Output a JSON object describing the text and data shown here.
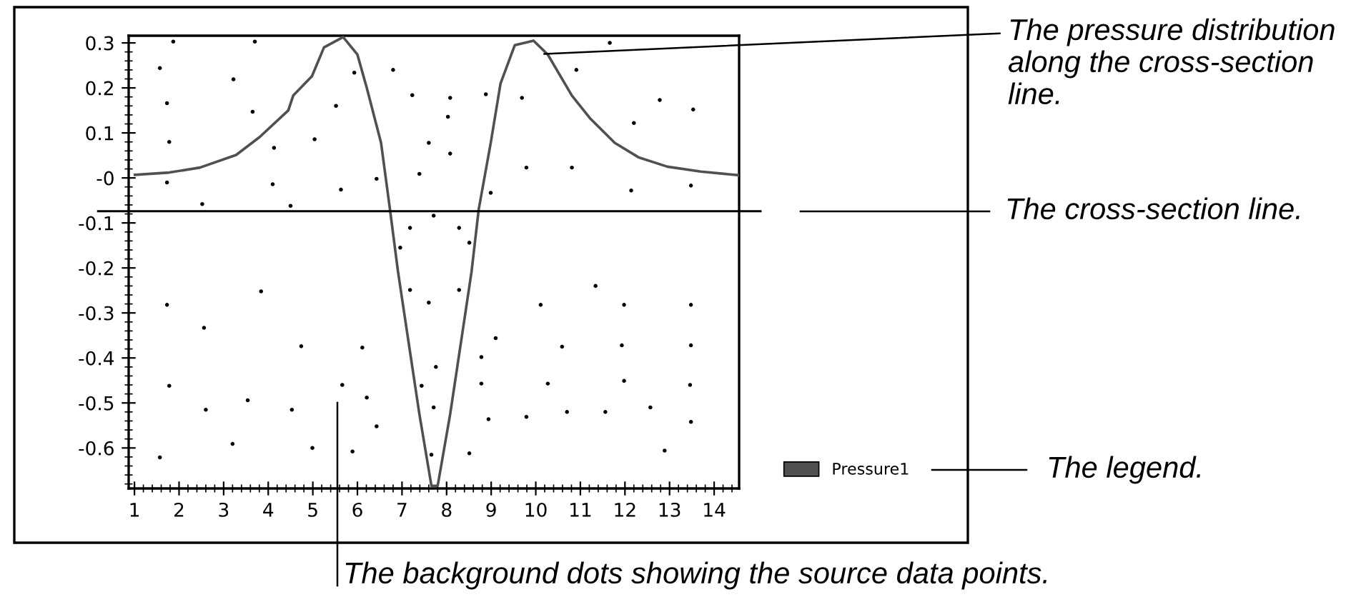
{
  "chart_data": {
    "type": "line",
    "series": [
      {
        "name": "Pressure1",
        "color": "#505050",
        "x": [
          1.01,
          1.78,
          2.47,
          3.28,
          3.81,
          4.45,
          4.56,
          4.98,
          5.25,
          5.68,
          6.0,
          6.21,
          6.53,
          6.73,
          6.91,
          7.07,
          7.39,
          7.66,
          7.8,
          8.08,
          8.4,
          8.56,
          8.72,
          8.99,
          9.21,
          9.53,
          9.95,
          10.27,
          10.81,
          11.23,
          11.77,
          12.3,
          12.95,
          13.7,
          14.55
        ],
        "values": [
          0.007,
          0.012,
          0.023,
          0.051,
          0.091,
          0.15,
          0.183,
          0.226,
          0.29,
          0.313,
          0.274,
          0.2,
          0.078,
          -0.07,
          -0.208,
          -0.314,
          -0.525,
          -0.684,
          -0.684,
          -0.525,
          -0.314,
          -0.208,
          -0.07,
          0.078,
          0.21,
          0.295,
          0.305,
          0.274,
          0.183,
          0.131,
          0.078,
          0.046,
          0.025,
          0.014,
          0.006
        ]
      },
      {
        "type": "scatter",
        "color": "#000000",
        "x": [
          1.87,
          3.7,
          1.57,
          3.22,
          1.73,
          3.65,
          1.78,
          4.13,
          5.93,
          5.52,
          5.04,
          1.73,
          4.1,
          2.52,
          4.5,
          5.63,
          6.43,
          6.8,
          7.23,
          8.08,
          8.88,
          9.69,
          10.91,
          11.66,
          12.78,
          13.53,
          12.2,
          10.81,
          9.79,
          12.14,
          13.48,
          7.6,
          8.03,
          8.08,
          7.39,
          8.99,
          1.73,
          3.84,
          2.56,
          1.78,
          2.6,
          1.57,
          3.2,
          3.54,
          4.53,
          4.74,
          4.99,
          5.89,
          5.66,
          6.43,
          6.21,
          6.11,
          7.66,
          7.71,
          8.51,
          8.94,
          9.79,
          10.7,
          11.56,
          12.57,
          13.48,
          13.46,
          11.98,
          10.27,
          8.78,
          8.78,
          10.59,
          11.93,
          13.48,
          11.98,
          13.48,
          10.11,
          9.1,
          7.44,
          7.76,
          11.34,
          12.89,
          7.71,
          7.6,
          6.96,
          8.51,
          7.18,
          8.28,
          7.18,
          8.28
        ],
        "values": [
          0.303,
          0.303,
          0.244,
          0.219,
          0.166,
          0.147,
          0.08,
          0.067,
          0.234,
          0.16,
          0.086,
          -0.01,
          -0.014,
          -0.058,
          -0.062,
          -0.026,
          -0.002,
          0.24,
          0.184,
          0.178,
          0.186,
          0.178,
          0.24,
          0.3,
          0.173,
          0.152,
          0.122,
          0.023,
          0.023,
          -0.028,
          -0.017,
          0.078,
          0.136,
          0.054,
          0.009,
          -0.033,
          -0.282,
          -0.252,
          -0.333,
          -0.462,
          -0.515,
          -0.621,
          -0.591,
          -0.494,
          -0.515,
          -0.374,
          -0.6,
          -0.608,
          -0.46,
          -0.552,
          -0.488,
          -0.377,
          -0.615,
          -0.51,
          -0.612,
          -0.536,
          -0.531,
          -0.52,
          -0.52,
          -0.51,
          -0.542,
          -0.46,
          -0.451,
          -0.457,
          -0.457,
          -0.398,
          -0.375,
          -0.372,
          -0.372,
          -0.282,
          -0.282,
          -0.282,
          -0.356,
          -0.462,
          -0.42,
          -0.24,
          -0.606,
          -0.084,
          -0.277,
          -0.155,
          -0.144,
          -0.111,
          -0.111,
          -0.249,
          -0.249
        ]
      }
    ],
    "xlim": [
      0.87,
      14.56
    ],
    "ylim": [
      -0.69,
      0.316
    ],
    "xticks": [
      1,
      2,
      3,
      4,
      5,
      6,
      7,
      8,
      9,
      10,
      11,
      12,
      13,
      14
    ],
    "yticks": [
      0.3,
      0.2,
      0.1,
      {
        "value": 0,
        "label": "-0"
      },
      -0.1,
      -0.2,
      -0.3,
      -0.4,
      -0.5,
      -0.6
    ],
    "ref_lines": [
      {
        "axis": "y",
        "value": -0.074,
        "color": "#000000",
        "line_style": "solid"
      }
    ],
    "annotations": [
      {
        "text": "The pressure distribution along the cross-section line.",
        "x": 10.1,
        "y": 0.275
      },
      "The cross-section line.",
      "The legend.",
      "The background dots showing the source data points."
    ],
    "grid": false,
    "legend": "bottom right",
    "line_style": "solid",
    "marker": "none"
  }
}
